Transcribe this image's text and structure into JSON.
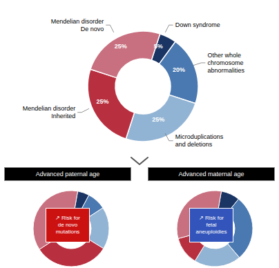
{
  "chart_data": [
    {
      "type": "pie",
      "categories": [
        "Down syndrome",
        "Other whole\nchromosome\nabnormalities",
        "Microduplications\nand deletions",
        "Mendelian disorder\nInherited",
        "Mendelian disorder\nDe novo"
      ],
      "values": [
        5,
        20,
        25,
        25,
        25
      ],
      "value_labels": [
        "5%",
        "20%",
        "25%",
        "25%",
        "25%"
      ],
      "colors": [
        "#1a3464",
        "#4a78b0",
        "#92b4d4",
        "#b83040",
        "#c87080"
      ],
      "data_labels": true
    },
    {
      "type": "pie",
      "title": "Advanced paternal age",
      "values": [
        5,
        8,
        18,
        32,
        37
      ],
      "colors": [
        "#1a3464",
        "#4a78b0",
        "#92b4d4",
        "#b83040",
        "#c87080"
      ],
      "color": "#cc1111",
      "annotations": [
        "↗ Risk for\nde novo\nmutations"
      ]
    },
    {
      "type": "pie",
      "title": "Advanced maternal age",
      "values": [
        8,
        28,
        20,
        12,
        32
      ],
      "colors": [
        "#1a3464",
        "#4a78b0",
        "#92b4d4",
        "#b83040",
        "#c87080"
      ],
      "color": "#3355bb",
      "annotations": [
        "↗ Risk for\nfetal\naneuploidies"
      ]
    }
  ]
}
